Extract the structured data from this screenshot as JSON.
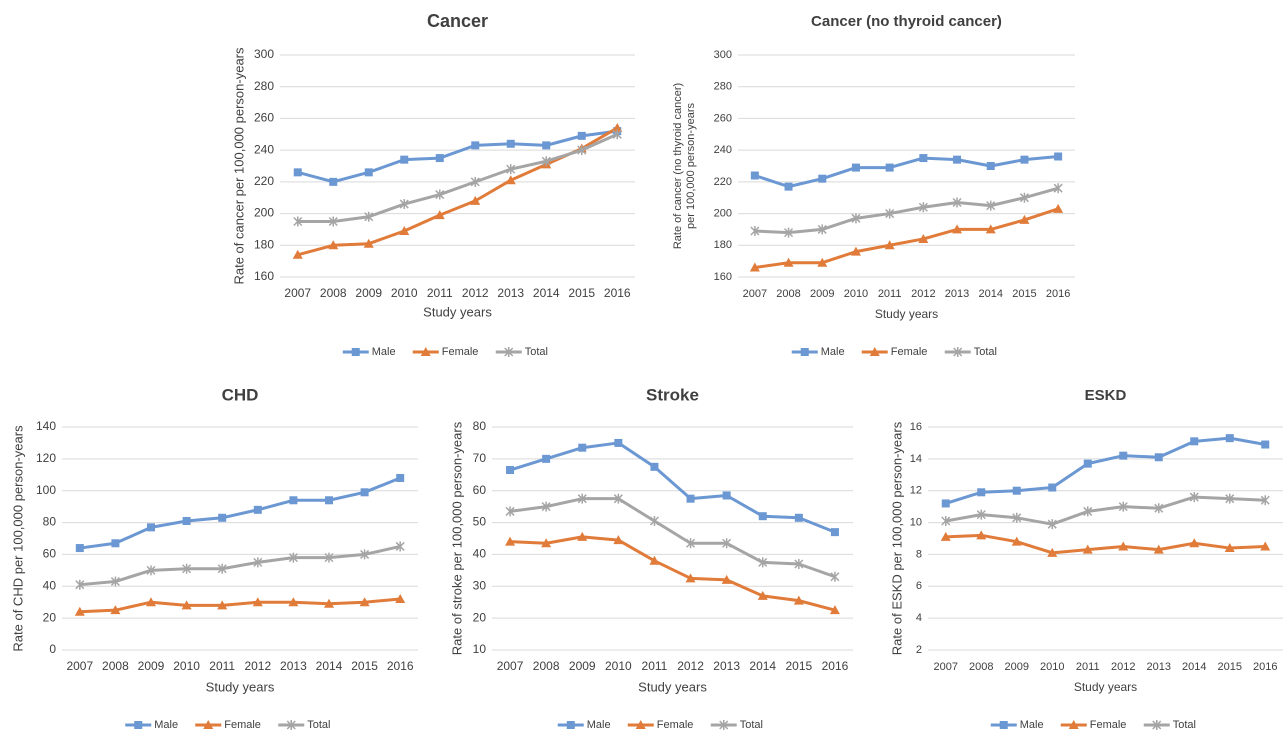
{
  "chart_data": [
    {
      "type": "line",
      "title": "Cancer",
      "xlabel": "Study years",
      "ylabel": [
        "Rate of cancer per 100,000 person-years"
      ],
      "categories": [
        "2007",
        "2008",
        "2009",
        "2010",
        "2011",
        "2012",
        "2013",
        "2014",
        "2015",
        "2016"
      ],
      "ylim": [
        160,
        300
      ],
      "yticks": [
        160,
        180,
        200,
        220,
        240,
        260,
        280,
        300
      ],
      "grid": true,
      "legend": "bottom",
      "series": [
        {
          "name": "Male",
          "color": "#6b97d3",
          "marker": "square",
          "values": [
            226,
            220,
            226,
            234,
            235,
            243,
            244,
            243,
            249,
            252
          ]
        },
        {
          "name": "Female",
          "color": "#e07b39",
          "marker": "triangle",
          "values": [
            174,
            180,
            181,
            189,
            199,
            208,
            221,
            231,
            241,
            254
          ]
        },
        {
          "name": "Total",
          "color": "#a5a5a5",
          "marker": "star",
          "values": [
            195,
            195,
            198,
            206,
            212,
            220,
            228,
            233,
            240,
            250
          ]
        }
      ]
    },
    {
      "type": "line",
      "title": "Cancer (no thyroid cancer)",
      "xlabel": "Study years",
      "ylabel": [
        "Rate of cancer (no thyroid cancer)",
        "per 100,000 person-years"
      ],
      "categories": [
        "2007",
        "2008",
        "2009",
        "2010",
        "2011",
        "2012",
        "2013",
        "2014",
        "2015",
        "2016"
      ],
      "ylim": [
        160,
        300
      ],
      "yticks": [
        160,
        180,
        200,
        220,
        240,
        260,
        280,
        300
      ],
      "grid": true,
      "legend": "bottom",
      "series": [
        {
          "name": "Male",
          "color": "#6b97d3",
          "marker": "square",
          "values": [
            224,
            217,
            222,
            229,
            229,
            235,
            234,
            230,
            234,
            236
          ]
        },
        {
          "name": "Female",
          "color": "#e07b39",
          "marker": "triangle",
          "values": [
            166,
            169,
            169,
            176,
            180,
            184,
            190,
            190,
            196,
            203
          ]
        },
        {
          "name": "Total",
          "color": "#a5a5a5",
          "marker": "star",
          "values": [
            189,
            188,
            190,
            197,
            200,
            204,
            207,
            205,
            210,
            216
          ]
        }
      ]
    },
    {
      "type": "line",
      "title": "CHD",
      "xlabel": "Study years",
      "ylabel": [
        "Rate of CHD per 100,000 person-years"
      ],
      "categories": [
        "2007",
        "2008",
        "2009",
        "2010",
        "2011",
        "2012",
        "2013",
        "2014",
        "2015",
        "2016"
      ],
      "ylim": [
        0,
        140
      ],
      "yticks": [
        0,
        20,
        40,
        60,
        80,
        100,
        120,
        140
      ],
      "grid": true,
      "legend": "bottom",
      "series": [
        {
          "name": "Male",
          "color": "#6b97d3",
          "marker": "square",
          "values": [
            64,
            67,
            77,
            81,
            83,
            88,
            94,
            94,
            99,
            108
          ]
        },
        {
          "name": "Female",
          "color": "#e07b39",
          "marker": "triangle",
          "values": [
            24,
            25,
            30,
            28,
            28,
            30,
            30,
            29,
            30,
            32
          ]
        },
        {
          "name": "Total",
          "color": "#a5a5a5",
          "marker": "star",
          "values": [
            41,
            43,
            50,
            51,
            51,
            55,
            58,
            58,
            60,
            65
          ]
        }
      ]
    },
    {
      "type": "line",
      "title": "Stroke",
      "xlabel": "Study years",
      "ylabel": [
        "Rate of stroke per 100,000 person-years"
      ],
      "categories": [
        "2007",
        "2008",
        "2009",
        "2010",
        "2011",
        "2012",
        "2013",
        "2014",
        "2015",
        "2016"
      ],
      "ylim": [
        10,
        80
      ],
      "yticks": [
        10,
        20,
        30,
        40,
        50,
        60,
        70,
        80
      ],
      "grid": true,
      "legend": "bottom",
      "series": [
        {
          "name": "Male",
          "color": "#6b97d3",
          "marker": "square",
          "values": [
            66.5,
            70,
            73.5,
            75,
            67.5,
            57.5,
            58.5,
            52,
            51.5,
            47
          ]
        },
        {
          "name": "Female",
          "color": "#e07b39",
          "marker": "triangle",
          "values": [
            44,
            43.5,
            45.5,
            44.5,
            38,
            32.5,
            32,
            27,
            25.5,
            22.5
          ]
        },
        {
          "name": "Total",
          "color": "#a5a5a5",
          "marker": "star",
          "values": [
            53.5,
            55,
            57.5,
            57.5,
            50.5,
            43.5,
            43.5,
            37.5,
            37,
            33
          ]
        }
      ]
    },
    {
      "type": "line",
      "title": "ESKD",
      "xlabel": "Study years",
      "ylabel": [
        "Rate of ESKD per 100,000 person-years"
      ],
      "categories": [
        "2007",
        "2008",
        "2009",
        "2010",
        "2011",
        "2012",
        "2013",
        "2014",
        "2015",
        "2016"
      ],
      "ylim": [
        2,
        16
      ],
      "yticks": [
        2,
        4,
        6,
        8,
        10,
        12,
        14,
        16
      ],
      "grid": true,
      "legend": "bottom",
      "series": [
        {
          "name": "Male",
          "color": "#6b97d3",
          "marker": "square",
          "values": [
            11.2,
            11.9,
            12.0,
            12.2,
            13.7,
            14.2,
            14.1,
            15.1,
            15.3,
            14.9
          ]
        },
        {
          "name": "Female",
          "color": "#e07b39",
          "marker": "triangle",
          "values": [
            9.1,
            9.2,
            8.8,
            8.1,
            8.3,
            8.5,
            8.3,
            8.7,
            8.4,
            8.5
          ]
        },
        {
          "name": "Total",
          "color": "#a5a5a5",
          "marker": "star",
          "values": [
            10.1,
            10.5,
            10.3,
            9.9,
            10.7,
            11.0,
            10.9,
            11.6,
            11.5,
            11.4
          ]
        }
      ]
    }
  ]
}
